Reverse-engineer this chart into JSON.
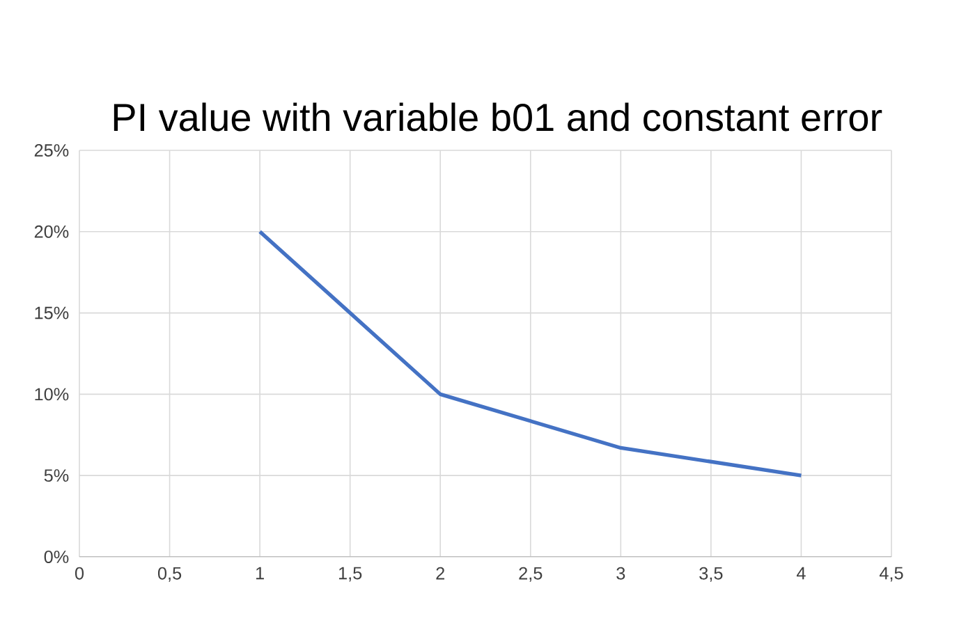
{
  "chart_data": {
    "type": "line",
    "title": "PI value with variable b01 and constant error",
    "x": [
      1,
      2,
      3,
      4
    ],
    "series": [
      {
        "color": "#4472c4",
        "values": [
          20,
          10,
          6.7,
          5
        ]
      }
    ],
    "xlim": [
      0,
      4.5
    ],
    "xticks": [
      0,
      {
        "value": 0.5,
        "label": "0,5"
      },
      1,
      {
        "value": 1.5,
        "label": "1,5"
      },
      2,
      {
        "value": 2.5,
        "label": "2,5"
      },
      3,
      {
        "value": 3.5,
        "label": "3,5"
      },
      4,
      {
        "value": 4.5,
        "label": "4,5"
      }
    ],
    "ylim": [
      0,
      25
    ],
    "yticks": [
      {
        "value": 0,
        "label": "0%"
      },
      {
        "value": 5,
        "label": "5%"
      },
      {
        "value": 10,
        "label": "10%"
      },
      {
        "value": 15,
        "label": "15%"
      },
      {
        "value": 20,
        "label": "20%"
      },
      {
        "value": 25,
        "label": "25%"
      }
    ],
    "grid": true
  }
}
